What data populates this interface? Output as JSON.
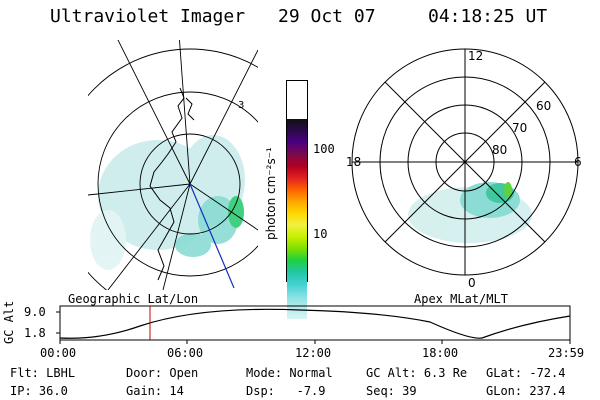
{
  "header": {
    "instrument": "Ultraviolet Imager",
    "date": "29 Oct 07",
    "time": "04:18:25 UT"
  },
  "geo_map": {
    "label": "Geographic Lat/Lon",
    "marker": "3"
  },
  "colorbar": {
    "unit_label": "photon cm⁻²s⁻¹",
    "ticks": [
      "100",
      "10"
    ],
    "colors": [
      "#111111",
      "#2a0a4a",
      "#4b0082",
      "#7a0a4a",
      "#b00020",
      "#e02020",
      "#ff6000",
      "#ffa500",
      "#ffd700",
      "#f0f040",
      "#c8f000",
      "#80e000",
      "#20d040",
      "#20c8a0",
      "#40d0d0",
      "#80e0e0",
      "#b8ecec",
      "#d8f4f4"
    ]
  },
  "polar_map": {
    "label": "Apex MLat/MLT",
    "mlt_labels": {
      "top": "12",
      "left": "18",
      "right": "6",
      "bottom": "0"
    },
    "lat_labels": [
      "60",
      "70",
      "80"
    ]
  },
  "timeline": {
    "ylabel": "GC Alt",
    "y_ticks": [
      "9.0",
      "1.8"
    ],
    "x_ticks": [
      "00:00",
      "06:00",
      "12:00",
      "18:00",
      "23:59"
    ]
  },
  "status": {
    "row1": [
      {
        "key": "Flt:",
        "value": "LBHL"
      },
      {
        "key": "Door:",
        "value": "Open"
      },
      {
        "key": "Mode:",
        "value": "Normal"
      },
      {
        "key": "GC Alt:",
        "value": "6.3 Re"
      },
      {
        "key": "GLat:",
        "value": "-72.4"
      }
    ],
    "row2": [
      {
        "key": "IP:",
        "value": "36.0"
      },
      {
        "key": "Gain:",
        "value": "14"
      },
      {
        "key": "Dsp:",
        "value": "-7.9"
      },
      {
        "key": "Seq:",
        "value": "39"
      },
      {
        "key": "GLon:",
        "value": "237.4"
      }
    ]
  }
}
